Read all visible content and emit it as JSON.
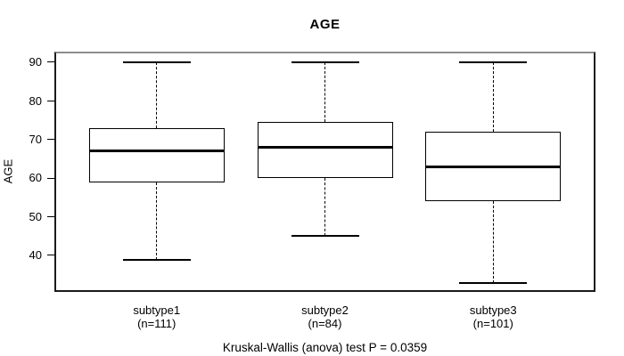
{
  "chart": {
    "title": "AGE",
    "y_axis_label": "AGE",
    "caption": "Kruskal-Wallis (anova) test P = 0.0359"
  },
  "chart_data": {
    "type": "boxplot",
    "title": "AGE",
    "xlabel": "",
    "ylabel": "AGE",
    "ylim": [
      30.6,
      92.8
    ],
    "yticks": [
      40,
      50,
      60,
      70,
      80,
      90
    ],
    "grid": false,
    "legend": false,
    "annotation": "Kruskal-Wallis (anova) test P = 0.0359",
    "groups": [
      {
        "label": "subtype1",
        "count_label": "(n=111)",
        "n": 111,
        "whisker_low": 39,
        "q1": 59,
        "median": 67,
        "q3": 73,
        "whisker_high": 90
      },
      {
        "label": "subtype2",
        "count_label": "(n=84)",
        "n": 84,
        "whisker_low": 45,
        "q1": 60,
        "median": 68,
        "q3": 74.5,
        "whisker_high": 90
      },
      {
        "label": "subtype3",
        "count_label": "(n=101)",
        "n": 101,
        "whisker_low": 33,
        "q1": 54,
        "median": 63,
        "q3": 72,
        "whisker_high": 90
      }
    ],
    "colors": {
      "box_border": "#000000",
      "median": "#000000",
      "whisker": "#000000",
      "frame": "#1a1a1a",
      "frame_top": "#8c8c8c",
      "text": "#000000",
      "background": "#ffffff"
    }
  }
}
